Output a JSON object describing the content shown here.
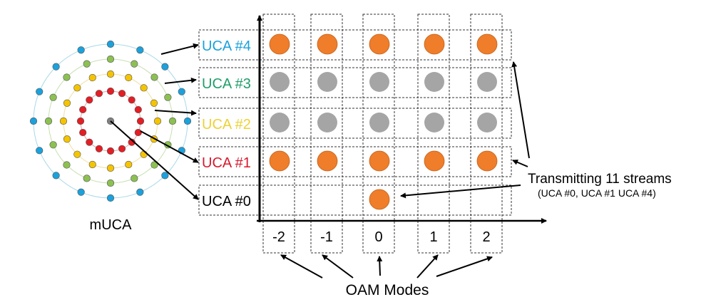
{
  "muca": {
    "label": "mUCA",
    "rings": [
      {
        "name": "UCA #1",
        "color": "#e31e24",
        "elements": 16
      },
      {
        "name": "UCA #2",
        "color": "#f5c400",
        "elements": 16
      },
      {
        "name": "UCA #3",
        "color": "#8cc152",
        "elements": 16
      },
      {
        "name": "UCA #4",
        "color": "#1ba1dc",
        "elements": 16
      }
    ],
    "center_color": "#808080",
    "ring_line_colors": [
      "#e8a0a0",
      "#f0e0a0",
      "#c8e0b0",
      "#a8d8e8"
    ]
  },
  "rows": [
    {
      "label": "UCA #4",
      "color": "#1ba1dc",
      "cells": [
        "orange",
        "orange",
        "orange",
        "orange",
        "orange"
      ]
    },
    {
      "label": "UCA #3",
      "color": "#1f9e6a",
      "cells": [
        "gray",
        "gray",
        "gray",
        "gray",
        "gray"
      ]
    },
    {
      "label": "UCA #2",
      "color": "#ecd236",
      "cells": [
        "gray",
        "gray",
        "gray",
        "gray",
        "gray"
      ]
    },
    {
      "label": "UCA #1",
      "color": "#d8192e",
      "cells": [
        "orange",
        "orange",
        "orange",
        "orange",
        "orange"
      ]
    },
    {
      "label": "UCA #0",
      "color": "#000000",
      "cells": [
        "",
        "",
        "orange",
        "",
        ""
      ]
    }
  ],
  "modes": [
    "-2",
    "-1",
    "0",
    "1",
    "2"
  ],
  "colors": {
    "orange": "#ef7d2a",
    "gray": "#a5a5a5"
  },
  "annotations": {
    "streams_title": "Transmitting 11 streams",
    "streams_sub": "(UCA #0, UCA #1 UCA #4)",
    "modes_label": "OAM Modes"
  }
}
